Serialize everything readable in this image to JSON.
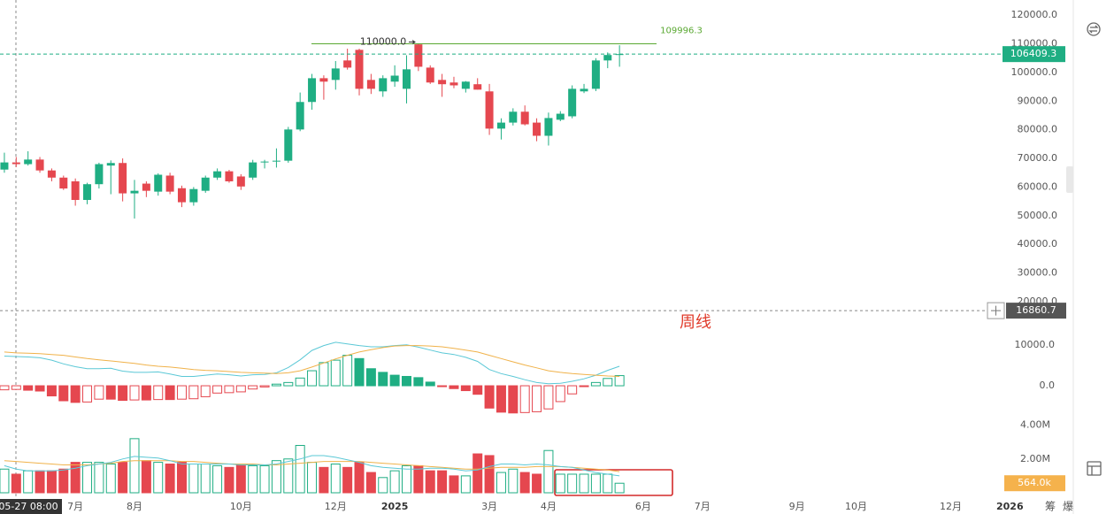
{
  "chart_data": [
    {
      "type": "candlestick",
      "up_color": "#1fae83",
      "down_color": "#e5474f",
      "xlim": [
        -0.37,
        85.5
      ],
      "ylim": [
        16900,
        125300
      ],
      "yticks": [
        {
          "value": 20000,
          "label": "20000.0"
        },
        {
          "value": 30000,
          "label": "30000.0"
        },
        {
          "value": 40000,
          "label": "40000.0"
        },
        {
          "value": 50000,
          "label": "50000.0"
        },
        {
          "value": 60000,
          "label": "60000.0"
        },
        {
          "value": 70000,
          "label": "70000.0"
        },
        {
          "value": 80000,
          "label": "80000.0"
        },
        {
          "value": 90000,
          "label": "90000.0"
        },
        {
          "value": 100000,
          "label": "100000.0"
        },
        {
          "value": 110000,
          "label": "110000.0"
        },
        {
          "value": 120000,
          "label": "120000.0"
        }
      ],
      "ohlc": [
        [
          66100,
          72000,
          65000,
          68600
        ],
        [
          68600,
          70500,
          67000,
          68000
        ],
        [
          68000,
          72500,
          67500,
          69600
        ],
        [
          69600,
          70500,
          65000,
          65800
        ],
        [
          65800,
          66500,
          62000,
          63300
        ],
        [
          63300,
          64000,
          59000,
          59500
        ],
        [
          62000,
          63000,
          53500,
          55500
        ],
        [
          55500,
          61500,
          54000,
          61000
        ],
        [
          61000,
          68500,
          59500,
          68000
        ],
        [
          67500,
          69300,
          57500,
          68400
        ],
        [
          68400,
          70000,
          55000,
          57800
        ],
        [
          57800,
          62500,
          49000,
          58700
        ],
        [
          61200,
          62000,
          56500,
          58700
        ],
        [
          58400,
          64800,
          57000,
          64300
        ],
        [
          64000,
          65000,
          57500,
          58400
        ],
        [
          59600,
          60500,
          53000,
          54700
        ],
        [
          54700,
          60000,
          53500,
          59300
        ],
        [
          58700,
          64000,
          58000,
          63300
        ],
        [
          63300,
          66500,
          62500,
          65500
        ],
        [
          65500,
          66000,
          61500,
          62000
        ],
        [
          63700,
          64500,
          59000,
          60200
        ],
        [
          63300,
          69500,
          62500,
          68600
        ],
        [
          68600,
          69500,
          66500,
          68900
        ],
        [
          68900,
          73500,
          66800,
          69200
        ],
        [
          69200,
          81000,
          68500,
          80100
        ],
        [
          80100,
          93000,
          79500,
          89700
        ],
        [
          89700,
          99500,
          87000,
          98000
        ],
        [
          98000,
          99000,
          90500,
          96800
        ],
        [
          97400,
          104000,
          94000,
          101400
        ],
        [
          104200,
          108300,
          101000,
          101700
        ],
        [
          107900,
          108300,
          92000,
          94300
        ],
        [
          97400,
          99500,
          92500,
          94300
        ],
        [
          93400,
          99000,
          91500,
          98000
        ],
        [
          96800,
          102500,
          95000,
          98900
        ],
        [
          94300,
          106000,
          89200,
          101100
        ],
        [
          109800,
          110000,
          100500,
          102000
        ],
        [
          101700,
          102500,
          96000,
          96500
        ],
        [
          97400,
          99500,
          91500,
          95900
        ],
        [
          96500,
          98500,
          94500,
          95500
        ],
        [
          94300,
          97000,
          93000,
          96800
        ],
        [
          95900,
          98000,
          94000,
          94000
        ],
        [
          93400,
          96000,
          78200,
          80400
        ],
        [
          80400,
          84000,
          76600,
          82500
        ],
        [
          82500,
          87500,
          81500,
          86300
        ],
        [
          86300,
          88500,
          81500,
          81900
        ],
        [
          82500,
          84000,
          76000,
          77900
        ],
        [
          77900,
          86000,
          74500,
          84100
        ],
        [
          83500,
          86500,
          83000,
          85600
        ],
        [
          84700,
          95500,
          84000,
          94300
        ],
        [
          93400,
          96000,
          92800,
          94300
        ],
        [
          94300,
          105000,
          93500,
          104200
        ],
        [
          104200,
          107000,
          101500,
          106100
        ],
        [
          106100,
          109500,
          102000,
          106409.3
        ]
      ],
      "last_price": 106409.3,
      "drawn_line": 109996.3,
      "high_marker": {
        "value": 110000,
        "label": "110000.0"
      },
      "annotation": "周线"
    },
    {
      "type": "macd",
      "up_color": "#1fae83",
      "down_color": "#e5474f",
      "xlim": [
        -0.37,
        85.5
      ],
      "ylim": [
        -7400,
        13300
      ],
      "yticks": [
        {
          "value": 0,
          "label": "0.0"
        },
        {
          "value": 10000,
          "label": "10000.0"
        }
      ],
      "histogram": [
        -1000,
        -900,
        -1100,
        -1300,
        -2500,
        -3700,
        -4100,
        -4000,
        -3300,
        -3300,
        -3600,
        -3500,
        -3500,
        -3400,
        -3400,
        -3300,
        -3200,
        -2700,
        -1800,
        -1700,
        -1500,
        -800,
        -300,
        400,
        800,
        1900,
        3700,
        5700,
        6300,
        7500,
        6700,
        4200,
        3300,
        2600,
        2300,
        2000,
        900,
        -200,
        -700,
        -1200,
        -2100,
        -5500,
        -6500,
        -6700,
        -6600,
        -6400,
        -5700,
        -3900,
        -2000,
        -200,
        800,
        1800,
        2500
      ],
      "series": [
        {
          "color": "#5bc8d6",
          "values": [
            7300,
            7200,
            7100,
            6900,
            6300,
            5400,
            4700,
            4200,
            4200,
            4300,
            3600,
            3300,
            3300,
            3400,
            2900,
            2300,
            2300,
            2600,
            2900,
            2700,
            2400,
            2700,
            2800,
            3200,
            4500,
            6400,
            8700,
            9900,
            10700,
            10300,
            9900,
            9600,
            9600,
            9900,
            10100,
            9500,
            8800,
            8100,
            7700,
            7000,
            6000,
            4000,
            3000,
            2300,
            1500,
            800,
            500,
            600,
            1100,
            1700,
            2600,
            3800,
            4800
          ]
        },
        {
          "color": "#f0b24a",
          "values": [
            8300,
            8100,
            8000,
            7900,
            7700,
            7500,
            7100,
            6700,
            6400,
            6100,
            5800,
            5500,
            5100,
            4800,
            4600,
            4300,
            4000,
            3800,
            3700,
            3500,
            3300,
            3200,
            3100,
            3000,
            3200,
            3700,
            4600,
            5600,
            6600,
            7500,
            8300,
            8900,
            9400,
            9800,
            9900,
            9900,
            9800,
            9600,
            9200,
            8800,
            8300,
            7500,
            6700,
            5900,
            5100,
            4400,
            3700,
            3300,
            3000,
            2800,
            2600,
            2400,
            2300
          ]
        }
      ]
    },
    {
      "type": "volume",
      "up_color": "#1fae83",
      "down_color": "#e5474f",
      "xlim": [
        -0.37,
        85.5
      ],
      "ylim": [
        0,
        4.5
      ],
      "yticks": [
        {
          "value": 2,
          "label": "2.00M"
        },
        {
          "value": 4,
          "label": "4.00M"
        }
      ],
      "xticks": [
        {
          "value": 6,
          "label": "7月"
        },
        {
          "value": 11,
          "label": "8月"
        },
        {
          "value": 20,
          "label": "10月"
        },
        {
          "value": 28,
          "label": "12月"
        },
        {
          "value": 33,
          "label": "2025"
        },
        {
          "value": 41,
          "label": "3月"
        },
        {
          "value": 46,
          "label": "4月"
        },
        {
          "value": 54,
          "label": "6月"
        },
        {
          "value": 59,
          "label": "7月"
        },
        {
          "value": 67,
          "label": "9月"
        },
        {
          "value": 72,
          "label": "10月"
        },
        {
          "value": 80,
          "label": "12月"
        },
        {
          "value": 85,
          "label": "2026"
        }
      ],
      "values": [
        1.4,
        1.1,
        1.3,
        1.3,
        1.3,
        1.4,
        1.8,
        1.8,
        1.8,
        1.7,
        1.8,
        3.2,
        1.9,
        1.8,
        1.7,
        1.8,
        1.7,
        1.7,
        1.6,
        1.5,
        1.7,
        1.6,
        1.6,
        1.9,
        2.0,
        2.8,
        1.8,
        1.5,
        1.7,
        1.5,
        1.8,
        1.2,
        0.9,
        1.3,
        1.6,
        1.6,
        1.3,
        1.3,
        1.0,
        1.0,
        2.3,
        2.2,
        1.2,
        1.4,
        1.2,
        1.1,
        2.5,
        1.1,
        1.1,
        1.1,
        1.1,
        1.1,
        0.564
      ],
      "series": [
        {
          "color": "#f0b24a",
          "values": [
            1.9,
            1.85,
            1.8,
            1.75,
            1.7,
            1.65,
            1.65,
            1.65,
            1.7,
            1.75,
            1.85,
            1.9,
            1.9,
            1.9,
            1.9,
            1.85,
            1.85,
            1.8,
            1.75,
            1.7,
            1.7,
            1.7,
            1.65,
            1.65,
            1.7,
            1.75,
            1.8,
            1.85,
            1.85,
            1.85,
            1.85,
            1.8,
            1.75,
            1.7,
            1.65,
            1.6,
            1.55,
            1.5,
            1.45,
            1.4,
            1.4,
            1.45,
            1.5,
            1.5,
            1.5,
            1.55,
            1.55,
            1.55,
            1.5,
            1.45,
            1.4,
            1.35,
            1.25
          ]
        },
        {
          "color": "#5bc8d6",
          "values": [
            1.6,
            1.4,
            1.3,
            1.3,
            1.3,
            1.35,
            1.45,
            1.6,
            1.7,
            1.8,
            2.0,
            2.15,
            2.1,
            2.05,
            1.9,
            1.7,
            1.7,
            1.7,
            1.7,
            1.7,
            1.65,
            1.65,
            1.65,
            1.7,
            1.85,
            2.0,
            2.2,
            2.2,
            2.1,
            1.95,
            1.8,
            1.6,
            1.5,
            1.45,
            1.4,
            1.4,
            1.45,
            1.45,
            1.4,
            1.3,
            1.35,
            1.55,
            1.7,
            1.7,
            1.65,
            1.7,
            1.65,
            1.55,
            1.5,
            1.35,
            1.2,
            1.1,
            1.0
          ]
        }
      ],
      "current": {
        "value": 0.564,
        "label": "564.0k"
      }
    }
  ],
  "crosshair": {
    "time": "05-27 08:00",
    "price": 16860.7
  },
  "toolbar": [
    "筹",
    "爆"
  ]
}
